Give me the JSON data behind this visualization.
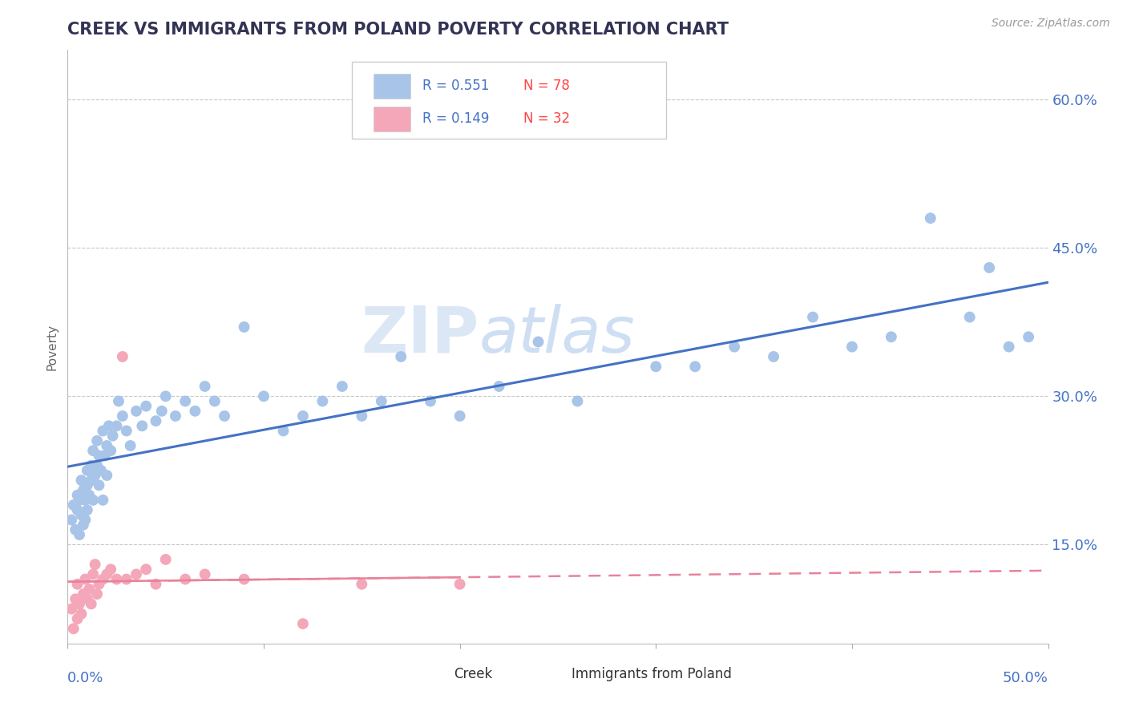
{
  "title": "CREEK VS IMMIGRANTS FROM POLAND POVERTY CORRELATION CHART",
  "source_text": "Source: ZipAtlas.com",
  "ylabel": "Poverty",
  "ytick_labels": [
    "15.0%",
    "30.0%",
    "45.0%",
    "60.0%"
  ],
  "ytick_values": [
    0.15,
    0.3,
    0.45,
    0.6
  ],
  "xlim": [
    0.0,
    0.5
  ],
  "ylim": [
    0.05,
    0.65
  ],
  "legend1_r": "R = 0.551",
  "legend1_n": "N = 78",
  "legend2_r": "R = 0.149",
  "legend2_n": "N = 32",
  "creek_color": "#A8C4E8",
  "poland_color": "#F4A7B9",
  "trend_blue": "#4472C4",
  "trend_pink": "#E8829A",
  "creek_scatter_x": [
    0.002,
    0.003,
    0.004,
    0.005,
    0.005,
    0.006,
    0.006,
    0.007,
    0.007,
    0.008,
    0.008,
    0.009,
    0.009,
    0.01,
    0.01,
    0.01,
    0.011,
    0.012,
    0.012,
    0.013,
    0.013,
    0.014,
    0.015,
    0.015,
    0.016,
    0.016,
    0.017,
    0.018,
    0.018,
    0.019,
    0.02,
    0.02,
    0.021,
    0.022,
    0.023,
    0.025,
    0.026,
    0.028,
    0.03,
    0.032,
    0.035,
    0.038,
    0.04,
    0.045,
    0.048,
    0.05,
    0.055,
    0.06,
    0.065,
    0.07,
    0.075,
    0.08,
    0.09,
    0.1,
    0.11,
    0.12,
    0.13,
    0.14,
    0.15,
    0.16,
    0.17,
    0.185,
    0.2,
    0.22,
    0.24,
    0.26,
    0.3,
    0.32,
    0.34,
    0.36,
    0.38,
    0.4,
    0.42,
    0.44,
    0.46,
    0.47,
    0.48,
    0.49
  ],
  "creek_scatter_y": [
    0.175,
    0.19,
    0.165,
    0.185,
    0.2,
    0.16,
    0.195,
    0.18,
    0.215,
    0.17,
    0.205,
    0.195,
    0.175,
    0.21,
    0.225,
    0.185,
    0.2,
    0.215,
    0.23,
    0.195,
    0.245,
    0.22,
    0.23,
    0.255,
    0.21,
    0.24,
    0.225,
    0.195,
    0.265,
    0.24,
    0.25,
    0.22,
    0.27,
    0.245,
    0.26,
    0.27,
    0.295,
    0.28,
    0.265,
    0.25,
    0.285,
    0.27,
    0.29,
    0.275,
    0.285,
    0.3,
    0.28,
    0.295,
    0.285,
    0.31,
    0.295,
    0.28,
    0.37,
    0.3,
    0.265,
    0.28,
    0.295,
    0.31,
    0.28,
    0.295,
    0.34,
    0.295,
    0.28,
    0.31,
    0.355,
    0.295,
    0.33,
    0.33,
    0.35,
    0.34,
    0.38,
    0.35,
    0.36,
    0.48,
    0.38,
    0.43,
    0.35,
    0.36
  ],
  "poland_scatter_x": [
    0.002,
    0.003,
    0.004,
    0.005,
    0.005,
    0.006,
    0.007,
    0.008,
    0.009,
    0.01,
    0.011,
    0.012,
    0.013,
    0.014,
    0.015,
    0.016,
    0.018,
    0.02,
    0.022,
    0.025,
    0.028,
    0.03,
    0.035,
    0.04,
    0.045,
    0.05,
    0.06,
    0.07,
    0.09,
    0.12,
    0.15,
    0.2
  ],
  "poland_scatter_y": [
    0.085,
    0.065,
    0.095,
    0.075,
    0.11,
    0.09,
    0.08,
    0.1,
    0.115,
    0.095,
    0.105,
    0.09,
    0.12,
    0.13,
    0.1,
    0.11,
    0.115,
    0.12,
    0.125,
    0.115,
    0.34,
    0.115,
    0.12,
    0.125,
    0.11,
    0.135,
    0.115,
    0.12,
    0.115,
    0.07,
    0.11,
    0.11
  ],
  "background_color": "#FFFFFF",
  "grid_color": "#C8C8C8",
  "title_color": "#333355",
  "axis_label_color": "#4472C4",
  "legend_r_color": "#4472C4",
  "legend_n_color": "#FF4444"
}
